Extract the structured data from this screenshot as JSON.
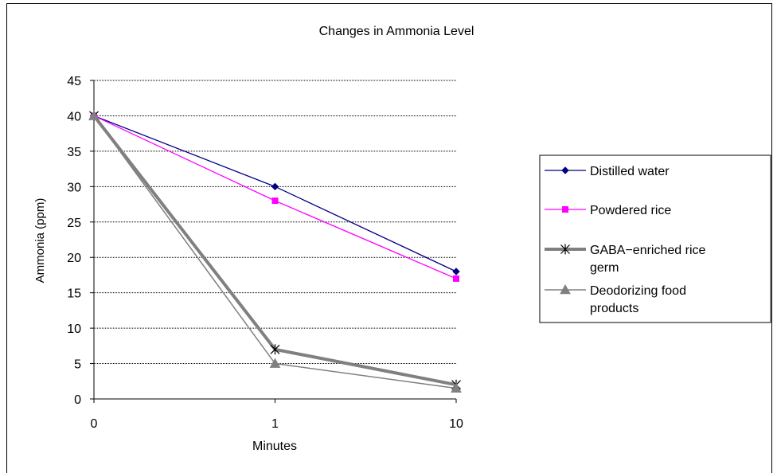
{
  "chart_data": {
    "type": "line",
    "title": "Changes in Ammonia Level",
    "xlabel": "Minutes",
    "ylabel": "Ammonia (ppm)",
    "categories": [
      "0",
      "1",
      "10"
    ],
    "ylim": [
      0,
      45
    ],
    "yticks": [
      0,
      5,
      10,
      15,
      20,
      25,
      30,
      35,
      40,
      45
    ],
    "grid": true,
    "legend_position": "right",
    "series": [
      {
        "name": "Distilled water",
        "values": [
          40,
          30,
          18
        ],
        "color": "#000080",
        "marker": "diamond"
      },
      {
        "name": "Powdered rice",
        "values": [
          40,
          28,
          17
        ],
        "color": "#ff00ff",
        "marker": "square"
      },
      {
        "name": "GABA−enriched rice germ",
        "legend_lines": [
          "GABA−enriched rice",
          "germ"
        ],
        "values": [
          40,
          7,
          2
        ],
        "color": "#808080",
        "marker": "star"
      },
      {
        "name": "Deodorizing food products",
        "legend_lines": [
          "Deodorizing food",
          "products"
        ],
        "values": [
          40,
          5,
          1.5
        ],
        "color": "#808080",
        "marker": "triangle"
      }
    ]
  }
}
